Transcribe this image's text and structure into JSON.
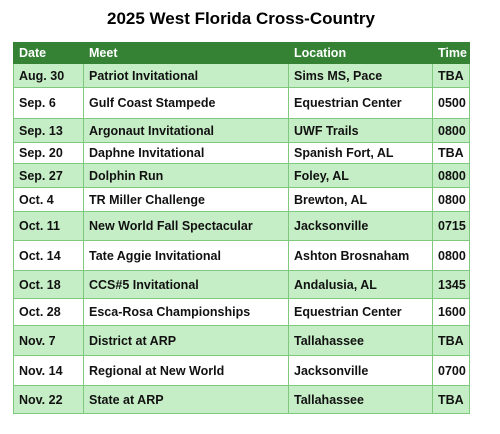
{
  "title": "2025 West Florida Cross-Country",
  "table": {
    "header": [
      "Date",
      "Meet",
      "Location",
      "Time"
    ],
    "rows": [
      [
        "Aug. 30",
        "Patriot Invitational",
        "Sims MS, Pace",
        "TBA"
      ],
      [
        "Sep. 6",
        "Gulf Coast Stampede",
        "Equestrian Center",
        "0500"
      ],
      [
        "Sep. 13",
        "Argonaut Invitational",
        "UWF Trails",
        "0800"
      ],
      [
        "Sep. 20",
        "Daphne Invitational",
        "Spanish Fort, AL",
        "TBA"
      ],
      [
        "Sep. 27",
        "Dolphin Run",
        "Foley, AL",
        "0800"
      ],
      [
        "Oct. 4",
        "TR Miller Challenge",
        "Brewton, AL",
        "0800"
      ],
      [
        "Oct. 11",
        "New World Fall Spectacular",
        "Jacksonville",
        "0715"
      ],
      [
        "Oct. 14",
        "Tate Aggie Invitational",
        "Ashton Brosnaham",
        "0800"
      ],
      [
        "Oct. 18",
        "CCS#5 Invitational",
        "Andalusia, AL",
        "1345"
      ],
      [
        "Oct. 28",
        "Esca-Rosa Championships",
        "Equestrian Center",
        "1600"
      ],
      [
        "Nov. 7",
        "District at ARP",
        "Tallahassee",
        "TBA"
      ],
      [
        "Nov. 14",
        "Regional at New World",
        "Jacksonville",
        "0700"
      ],
      [
        "Nov. 22",
        "State at ARP",
        "Tallahassee",
        "TBA"
      ]
    ]
  }
}
